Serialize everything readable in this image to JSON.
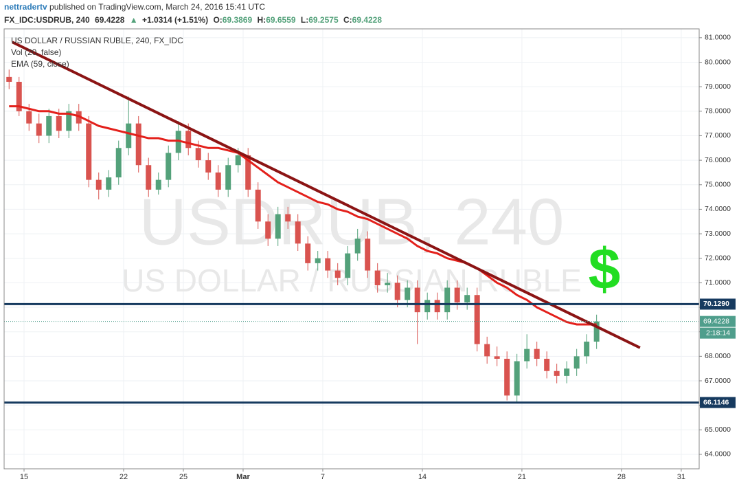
{
  "header": {
    "publisher": "nettradertv",
    "published": "published on TradingView.com, March 24, 2016 15:41 UTC",
    "symbol": "FX_IDC:USDRUB, 240",
    "price": "69.4228",
    "change": "+1.0314 (+1.51%)",
    "ohlc": [
      {
        "label": "O:",
        "value": "69.3869"
      },
      {
        "label": "H:",
        "value": "69.6559"
      },
      {
        "label": "L:",
        "value": "69.2575"
      },
      {
        "label": "C:",
        "value": "69.4228"
      }
    ]
  },
  "chart_data": {
    "type": "candlestick",
    "title": "US DOLLAR / RUSSIAN RUBLE, 240, FX_IDC",
    "indicators": [
      "Vol (20, false)",
      "EMA (59, close)"
    ],
    "watermark": [
      "USDRUB, 240",
      "US DOLLAR / RUSSIAN RUBLE"
    ],
    "annotation": "$",
    "up_color": "#53a17a",
    "down_color": "#d9534f",
    "x": [
      -0.75,
      -0.25,
      0.25,
      0.75,
      1.25,
      1.75,
      2.25,
      2.75,
      3.25,
      3.75,
      4.25,
      4.75,
      5.25,
      5.75,
      6.25,
      6.75,
      7.25,
      7.75,
      8.25,
      8.75,
      9.25,
      9.75,
      10.25,
      10.75,
      11.25,
      11.75,
      12.25,
      12.75,
      13.25,
      13.75,
      14.25,
      14.75,
      15.25,
      15.75,
      16.25,
      16.75,
      17.25,
      17.75,
      18.25,
      18.75,
      19.25,
      19.75,
      20.25,
      20.75,
      21.25,
      21.75,
      22.25,
      22.75,
      23.25,
      23.75,
      24.25,
      24.75,
      25.25,
      25.75,
      26.25,
      26.75,
      27.25,
      27.75,
      28.25,
      28.75
    ],
    "open": [
      79.4,
      79.2,
      78.0,
      77.5,
      77.0,
      77.8,
      77.2,
      78.0,
      77.5,
      75.2,
      74.8,
      75.3,
      76.5,
      77.5,
      75.8,
      74.8,
      75.2,
      76.3,
      77.2,
      76.5,
      76.0,
      75.5,
      74.8,
      75.8,
      76.2,
      74.8,
      73.5,
      72.8,
      73.8,
      73.5,
      72.6,
      71.8,
      72.0,
      71.5,
      71.2,
      72.2,
      72.8,
      71.5,
      70.9,
      71.0,
      70.3,
      70.8,
      69.8,
      70.3,
      69.8,
      70.8,
      70.2,
      70.5,
      68.5,
      68.0,
      67.9,
      66.4,
      67.8,
      68.3,
      67.9,
      67.4,
      67.2,
      67.5,
      68.0,
      68.6
    ],
    "high": [
      79.7,
      79.4,
      78.3,
      77.9,
      78.1,
      78.1,
      78.3,
      78.3,
      77.8,
      75.5,
      75.6,
      76.8,
      78.6,
      77.8,
      76.1,
      75.5,
      76.6,
      77.6,
      77.5,
      76.8,
      76.3,
      75.8,
      76.1,
      76.5,
      76.5,
      75.1,
      73.8,
      74.1,
      74.1,
      73.8,
      72.9,
      72.3,
      72.3,
      71.8,
      72.5,
      73.2,
      73.1,
      71.8,
      71.4,
      71.3,
      71.1,
      71.1,
      70.6,
      70.6,
      71.1,
      71.1,
      70.8,
      70.8,
      68.8,
      68.4,
      68.2,
      68.1,
      68.9,
      68.6,
      68.2,
      67.7,
      67.8,
      68.3,
      68.9,
      69.7
    ],
    "low": [
      78.9,
      77.8,
      77.2,
      76.7,
      76.7,
      76.9,
      76.9,
      77.2,
      74.9,
      74.4,
      74.5,
      75.0,
      76.2,
      75.5,
      74.5,
      74.6,
      74.9,
      76.0,
      76.2,
      75.7,
      75.2,
      74.5,
      74.5,
      75.5,
      74.5,
      73.2,
      72.5,
      72.5,
      73.2,
      72.3,
      71.5,
      71.5,
      71.2,
      70.9,
      70.9,
      71.9,
      71.2,
      70.6,
      70.6,
      70.0,
      70.0,
      68.5,
      69.5,
      69.5,
      69.5,
      69.9,
      69.9,
      68.2,
      67.7,
      67.6,
      66.2,
      66.1,
      67.5,
      67.6,
      67.1,
      66.9,
      66.9,
      67.2,
      67.7,
      68.3
    ],
    "close": [
      79.2,
      78.0,
      77.5,
      77.0,
      77.8,
      77.2,
      78.0,
      77.5,
      75.2,
      74.8,
      75.3,
      76.5,
      77.5,
      75.8,
      74.8,
      75.2,
      76.3,
      77.2,
      76.5,
      76.0,
      75.5,
      74.8,
      75.8,
      76.2,
      74.8,
      73.5,
      72.8,
      73.8,
      73.5,
      72.6,
      71.8,
      72.0,
      71.5,
      71.2,
      72.2,
      72.8,
      71.5,
      70.9,
      71.0,
      70.3,
      70.8,
      69.8,
      70.3,
      69.8,
      70.8,
      70.2,
      70.5,
      68.5,
      68.0,
      67.9,
      66.4,
      67.8,
      68.3,
      67.9,
      67.4,
      67.2,
      67.5,
      68.0,
      68.6,
      69.42
    ],
    "ema": {
      "color": "#e3201b",
      "values": [
        78.2,
        78.2,
        78.1,
        78.0,
        78.0,
        77.9,
        77.9,
        77.8,
        77.6,
        77.4,
        77.3,
        77.2,
        77.1,
        77.0,
        76.9,
        76.9,
        76.8,
        76.8,
        76.7,
        76.6,
        76.5,
        76.5,
        76.4,
        76.3,
        76.0,
        75.7,
        75.4,
        75.1,
        74.9,
        74.7,
        74.5,
        74.3,
        74.2,
        74.0,
        73.9,
        73.7,
        73.6,
        73.4,
        73.2,
        73.0,
        72.8,
        72.5,
        72.3,
        72.2,
        72.0,
        71.9,
        71.8,
        71.6,
        71.3,
        71.0,
        70.8,
        70.5,
        70.3,
        70.0,
        69.8,
        69.6,
        69.4,
        69.3,
        69.3,
        69.3
      ]
    },
    "trendline": {
      "color": "#8b1414",
      "x": [
        -0.59,
        30.93
      ],
      "values": [
        80.82,
        68.35
      ]
    },
    "levels": [
      {
        "value": 70.129,
        "label": "70.1290"
      },
      {
        "value": 66.1146,
        "label": "66.1146"
      }
    ],
    "level_color": "#163a5f",
    "last_price": {
      "value": 69.4228,
      "label": "69.4228"
    },
    "last_color": "#4f9e8c",
    "countdown": "2:18:14",
    "xlim": [
      -1,
      33.9
    ],
    "ylim": [
      63.41,
      81.36
    ],
    "xticks": [
      {
        "value": 0,
        "label": "15"
      },
      {
        "value": 5,
        "label": "22"
      },
      {
        "value": 8,
        "label": "25"
      },
      {
        "value": 11,
        "label": "Mar"
      },
      {
        "value": 15,
        "label": "7"
      },
      {
        "value": 20,
        "label": "14"
      },
      {
        "value": 25,
        "label": "21"
      },
      {
        "value": 30,
        "label": "28"
      },
      {
        "value": 33,
        "label": "31"
      }
    ],
    "yticks": [
      {
        "value": 64,
        "label": "64.0000"
      },
      {
        "value": 65,
        "label": "65.0000"
      },
      {
        "value": 66,
        "label": "66.0000"
      },
      {
        "value": 67,
        "label": "67.0000"
      },
      {
        "value": 68,
        "label": "68.0000"
      },
      {
        "value": 69,
        "label": "69.0000"
      },
      {
        "value": 70,
        "label": "70.0000"
      },
      {
        "value": 71,
        "label": "71.0000"
      },
      {
        "value": 72,
        "label": "72.0000"
      },
      {
        "value": 73,
        "label": "73.0000"
      },
      {
        "value": 74,
        "label": "74.0000"
      },
      {
        "value": 75,
        "label": "75.0000"
      },
      {
        "value": 76,
        "label": "76.0000"
      },
      {
        "value": 77,
        "label": "77.0000"
      },
      {
        "value": 78,
        "label": "78.0000"
      },
      {
        "value": 79,
        "label": "79.0000"
      },
      {
        "value": 80,
        "label": "80.0000"
      },
      {
        "value": 81,
        "label": "81.0000"
      }
    ],
    "grid": true
  }
}
